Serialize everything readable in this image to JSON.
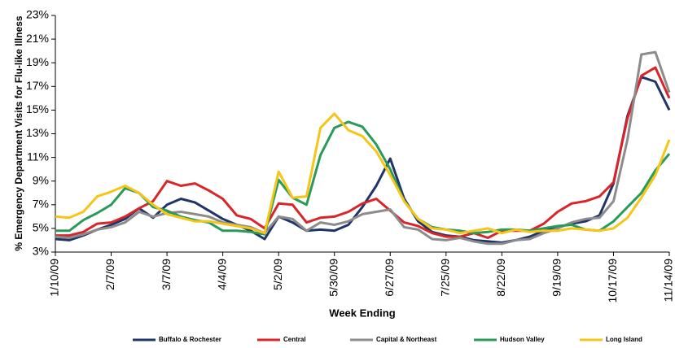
{
  "chart_data": {
    "type": "line",
    "y_label": "% Emergency Department Visits for Flu-like Illness",
    "x_label": "Week Ending",
    "categories": [
      "1/10/09",
      null,
      null,
      null,
      "2/7/09",
      null,
      null,
      null,
      "3/7/09",
      null,
      null,
      null,
      "4/4/09",
      null,
      null,
      null,
      "5/2/09",
      null,
      null,
      null,
      "5/30/09",
      null,
      null,
      null,
      "6/27/09",
      null,
      null,
      null,
      "7/25/09",
      null,
      null,
      null,
      "8/22/09",
      null,
      null,
      null,
      "9/19/09",
      null,
      null,
      null,
      "10/17/09",
      null,
      null,
      null,
      "11/14/09"
    ],
    "ylim": [
      3,
      23
    ],
    "yticks": [
      {
        "value": 3,
        "label": "3%"
      },
      {
        "value": 5,
        "label": "5%"
      },
      {
        "value": 7,
        "label": "7%"
      },
      {
        "value": 9,
        "label": "9%"
      },
      {
        "value": 11,
        "label": "11%"
      },
      {
        "value": 13,
        "label": "13%"
      },
      {
        "value": 15,
        "label": "15%"
      },
      {
        "value": 17,
        "label": "17%"
      },
      {
        "value": 19,
        "label": "19%"
      },
      {
        "value": 21,
        "label": "21%"
      },
      {
        "value": 23,
        "label": "23%"
      }
    ],
    "grid": false,
    "legend": "bottom",
    "series": [
      {
        "name": "Buffalo & Rochester",
        "color": "#1f3468",
        "values": [
          4.1,
          4.0,
          4.4,
          4.9,
          5.3,
          5.8,
          6.7,
          5.9,
          7.0,
          7.5,
          7.2,
          6.5,
          5.8,
          5.3,
          4.8,
          4.1,
          6.0,
          5.5,
          4.8,
          4.9,
          4.8,
          5.3,
          6.8,
          8.6,
          10.9,
          7.5,
          5.6,
          4.7,
          4.4,
          4.3,
          4.0,
          3.9,
          3.8,
          4.0,
          4.3,
          4.8,
          5.1,
          5.4,
          5.6,
          6.1,
          8.8,
          14.5,
          17.8,
          17.4,
          15.0
        ]
      },
      {
        "name": "Central",
        "color": "#d9252a",
        "values": [
          4.4,
          4.4,
          4.7,
          5.4,
          5.5,
          6.0,
          6.7,
          7.3,
          9.0,
          8.6,
          8.8,
          8.2,
          7.5,
          6.1,
          5.8,
          5.0,
          7.1,
          7.0,
          5.5,
          5.9,
          6.0,
          6.4,
          7.1,
          7.5,
          6.5,
          5.5,
          5.2,
          4.6,
          4.3,
          4.3,
          4.6,
          4.2,
          4.8,
          4.8,
          4.8,
          5.4,
          6.4,
          7.1,
          7.3,
          7.7,
          8.9,
          14.3,
          17.9,
          18.6,
          16.0
        ]
      },
      {
        "name": "Capital & Northeast",
        "color": "#8c8c8c",
        "values": [
          4.3,
          4.2,
          4.5,
          4.9,
          5.1,
          5.5,
          6.4,
          6.0,
          6.3,
          6.4,
          6.2,
          6.0,
          5.5,
          5.3,
          5.1,
          4.6,
          6.0,
          5.8,
          4.8,
          5.5,
          5.3,
          5.6,
          6.2,
          6.4,
          6.6,
          5.1,
          4.9,
          4.1,
          4.0,
          4.2,
          3.9,
          3.7,
          3.7,
          4.0,
          4.1,
          4.6,
          5.0,
          5.5,
          5.8,
          5.9,
          7.3,
          12.5,
          19.7,
          19.9,
          16.5
        ]
      },
      {
        "name": "Hudson Valley",
        "color": "#2a9a5a",
        "values": [
          4.8,
          4.8,
          5.7,
          6.3,
          7.0,
          8.4,
          8.0,
          6.8,
          6.5,
          6.0,
          5.7,
          5.5,
          4.8,
          4.8,
          4.7,
          4.5,
          9.1,
          7.6,
          7.0,
          11.2,
          13.5,
          14.0,
          13.6,
          12.1,
          10.0,
          7.3,
          5.8,
          5.1,
          4.9,
          4.8,
          4.6,
          4.7,
          4.9,
          4.9,
          4.8,
          5.0,
          5.2,
          5.3,
          4.9,
          4.8,
          5.6,
          6.8,
          8.0,
          9.9,
          11.3
        ]
      },
      {
        "name": "Long Island",
        "color": "#f5c518",
        "values": [
          6.0,
          5.9,
          6.4,
          7.7,
          8.1,
          8.6,
          8.0,
          7.0,
          6.2,
          5.9,
          5.6,
          5.6,
          5.4,
          5.2,
          5.0,
          4.6,
          9.8,
          7.6,
          7.7,
          13.5,
          14.7,
          13.3,
          12.8,
          11.5,
          9.5,
          7.3,
          5.8,
          5.0,
          4.9,
          4.6,
          4.8,
          5.0,
          4.6,
          4.9,
          4.7,
          4.8,
          4.8,
          5.0,
          4.9,
          4.8,
          5.0,
          5.9,
          7.6,
          9.5,
          12.5
        ]
      }
    ]
  }
}
